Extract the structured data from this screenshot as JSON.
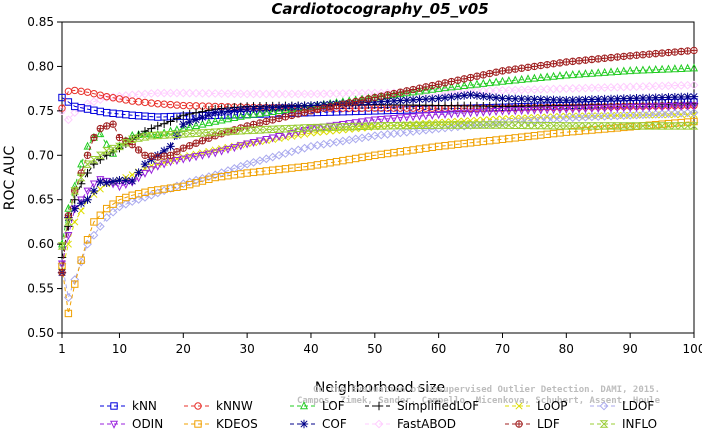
{
  "chart_data": {
    "type": "line",
    "title": "Cardiotocography_05_v05",
    "xlabel": "Neighborhood size",
    "ylabel": "ROC AUC",
    "xlim": [
      1,
      100
    ],
    "ylim": [
      0.5,
      0.85
    ],
    "xticks": [
      1,
      10,
      20,
      30,
      40,
      50,
      60,
      70,
      80,
      90,
      100
    ],
    "yticks": [
      "0.50",
      "0.55",
      "0.60",
      "0.65",
      "0.70",
      "0.75",
      "0.80",
      "0.85"
    ],
    "grid": false,
    "legend_position": "bottom",
    "watermark": [
      "Campos, Zimek, Sander, Campello, Micenkova, Schubert, Assent, Houle",
      "On the Evaluation of Unsupervised Outlier Detection. DAMI, 2015."
    ],
    "series": [
      {
        "name": "kNN",
        "color": "#0000dd",
        "marker": "square",
        "dash": "4,3",
        "points": [
          [
            1,
            0.765
          ],
          [
            2,
            0.76
          ],
          [
            3,
            0.755
          ],
          [
            5,
            0.752
          ],
          [
            8,
            0.748
          ],
          [
            12,
            0.745
          ],
          [
            16,
            0.743
          ],
          [
            20,
            0.744
          ],
          [
            25,
            0.745
          ],
          [
            30,
            0.746
          ],
          [
            40,
            0.748
          ],
          [
            50,
            0.75
          ],
          [
            60,
            0.752
          ],
          [
            70,
            0.754
          ],
          [
            80,
            0.756
          ],
          [
            90,
            0.758
          ],
          [
            100,
            0.76
          ]
        ]
      },
      {
        "name": "kNNW",
        "color": "#e8302a",
        "marker": "circle",
        "dash": "4,3",
        "points": [
          [
            1,
            0.753
          ],
          [
            2,
            0.772
          ],
          [
            3,
            0.773
          ],
          [
            5,
            0.771
          ],
          [
            8,
            0.766
          ],
          [
            12,
            0.761
          ],
          [
            16,
            0.758
          ],
          [
            20,
            0.756
          ],
          [
            25,
            0.755
          ],
          [
            30,
            0.754
          ],
          [
            40,
            0.753
          ],
          [
            50,
            0.753
          ],
          [
            60,
            0.753
          ],
          [
            70,
            0.753
          ],
          [
            80,
            0.754
          ],
          [
            90,
            0.755
          ],
          [
            100,
            0.756
          ]
        ]
      },
      {
        "name": "LOF",
        "color": "#22cc22",
        "marker": "triangle",
        "dash": "4,3",
        "points": [
          [
            1,
            0.6
          ],
          [
            2,
            0.64
          ],
          [
            3,
            0.665
          ],
          [
            4,
            0.69
          ],
          [
            5,
            0.71
          ],
          [
            6,
            0.72
          ],
          [
            7,
            0.724
          ],
          [
            8,
            0.712
          ],
          [
            9,
            0.702
          ],
          [
            10,
            0.71
          ],
          [
            12,
            0.722
          ],
          [
            14,
            0.724
          ],
          [
            16,
            0.723
          ],
          [
            18,
            0.727
          ],
          [
            20,
            0.73
          ],
          [
            25,
            0.738
          ],
          [
            30,
            0.745
          ],
          [
            40,
            0.755
          ],
          [
            50,
            0.765
          ],
          [
            60,
            0.775
          ],
          [
            70,
            0.783
          ],
          [
            80,
            0.79
          ],
          [
            90,
            0.795
          ],
          [
            100,
            0.798
          ]
        ]
      },
      {
        "name": "SimplifiedLOF",
        "color": "#000000",
        "marker": "plus",
        "dash": "4,3",
        "points": [
          [
            1,
            0.585
          ],
          [
            2,
            0.62
          ],
          [
            3,
            0.65
          ],
          [
            4,
            0.668
          ],
          [
            5,
            0.68
          ],
          [
            6,
            0.69
          ],
          [
            7,
            0.695
          ],
          [
            8,
            0.7
          ],
          [
            10,
            0.708
          ],
          [
            12,
            0.718
          ],
          [
            14,
            0.727
          ],
          [
            16,
            0.733
          ],
          [
            18,
            0.738
          ],
          [
            20,
            0.745
          ],
          [
            25,
            0.752
          ],
          [
            30,
            0.755
          ],
          [
            40,
            0.756
          ],
          [
            50,
            0.757
          ],
          [
            60,
            0.756
          ],
          [
            70,
            0.755
          ],
          [
            80,
            0.756
          ],
          [
            90,
            0.757
          ],
          [
            100,
            0.758
          ]
        ]
      },
      {
        "name": "LoOP",
        "color": "#dddd00",
        "marker": "cross",
        "dash": "4,3",
        "points": [
          [
            1,
            0.57
          ],
          [
            2,
            0.6
          ],
          [
            3,
            0.625
          ],
          [
            5,
            0.65
          ],
          [
            8,
            0.668
          ],
          [
            10,
            0.672
          ],
          [
            12,
            0.678
          ],
          [
            15,
            0.688
          ],
          [
            20,
            0.698
          ],
          [
            25,
            0.706
          ],
          [
            30,
            0.713
          ],
          [
            40,
            0.725
          ],
          [
            50,
            0.732
          ],
          [
            60,
            0.737
          ],
          [
            70,
            0.741
          ],
          [
            80,
            0.744
          ],
          [
            90,
            0.745
          ],
          [
            100,
            0.746
          ]
        ]
      },
      {
        "name": "LDOF",
        "color": "#aaaaee",
        "marker": "diamond",
        "dash": "4,3",
        "points": [
          [
            1,
            0.578
          ],
          [
            2,
            0.54
          ],
          [
            3,
            0.56
          ],
          [
            5,
            0.6
          ],
          [
            8,
            0.63
          ],
          [
            10,
            0.642
          ],
          [
            12,
            0.648
          ],
          [
            15,
            0.655
          ],
          [
            20,
            0.668
          ],
          [
            25,
            0.678
          ],
          [
            30,
            0.69
          ],
          [
            40,
            0.71
          ],
          [
            50,
            0.722
          ],
          [
            60,
            0.73
          ],
          [
            70,
            0.737
          ],
          [
            80,
            0.742
          ],
          [
            90,
            0.745
          ],
          [
            100,
            0.748
          ]
        ]
      },
      {
        "name": "ODIN",
        "color": "#9922dd",
        "marker": "triangle-down",
        "dash": "4,3",
        "points": [
          [
            1,
            0.578
          ],
          [
            2,
            0.61
          ],
          [
            3,
            0.64
          ],
          [
            4,
            0.65
          ],
          [
            5,
            0.66
          ],
          [
            6,
            0.668
          ],
          [
            7,
            0.673
          ],
          [
            8,
            0.671
          ],
          [
            10,
            0.665
          ],
          [
            12,
            0.67
          ],
          [
            14,
            0.68
          ],
          [
            16,
            0.688
          ],
          [
            18,
            0.693
          ],
          [
            20,
            0.696
          ],
          [
            25,
            0.703
          ],
          [
            30,
            0.713
          ],
          [
            40,
            0.73
          ],
          [
            50,
            0.74
          ],
          [
            60,
            0.746
          ],
          [
            70,
            0.75
          ],
          [
            80,
            0.752
          ],
          [
            90,
            0.754
          ],
          [
            100,
            0.756
          ]
        ]
      },
      {
        "name": "KDEOS",
        "color": "#f0a000",
        "marker": "square",
        "dash": "4,3",
        "points": [
          [
            1,
            0.575
          ],
          [
            2,
            0.522
          ],
          [
            3,
            0.555
          ],
          [
            4,
            0.582
          ],
          [
            5,
            0.605
          ],
          [
            6,
            0.625
          ],
          [
            8,
            0.64
          ],
          [
            10,
            0.65
          ],
          [
            12,
            0.655
          ],
          [
            15,
            0.66
          ],
          [
            20,
            0.665
          ],
          [
            25,
            0.675
          ],
          [
            30,
            0.68
          ],
          [
            40,
            0.688
          ],
          [
            50,
            0.7
          ],
          [
            60,
            0.71
          ],
          [
            70,
            0.718
          ],
          [
            80,
            0.726
          ],
          [
            90,
            0.732
          ],
          [
            100,
            0.738
          ]
        ]
      },
      {
        "name": "COF",
        "color": "#000088",
        "marker": "star",
        "dash": "4,3",
        "points": [
          [
            1,
            0.568
          ],
          [
            2,
            0.63
          ],
          [
            3,
            0.64
          ],
          [
            4,
            0.646
          ],
          [
            5,
            0.65
          ],
          [
            6,
            0.66
          ],
          [
            7,
            0.67
          ],
          [
            8,
            0.669
          ],
          [
            10,
            0.672
          ],
          [
            12,
            0.671
          ],
          [
            14,
            0.69
          ],
          [
            16,
            0.7
          ],
          [
            18,
            0.71
          ],
          [
            20,
            0.735
          ],
          [
            25,
            0.748
          ],
          [
            30,
            0.752
          ],
          [
            40,
            0.756
          ],
          [
            50,
            0.76
          ],
          [
            60,
            0.764
          ],
          [
            65,
            0.768
          ],
          [
            70,
            0.764
          ],
          [
            80,
            0.762
          ],
          [
            90,
            0.764
          ],
          [
            100,
            0.766
          ]
        ]
      },
      {
        "name": "FastABOD",
        "color": "#ffccff",
        "marker": "diamond",
        "dash": "4,3",
        "points": [
          [
            1,
            0.75
          ],
          [
            2,
            0.74
          ],
          [
            3,
            0.748
          ],
          [
            5,
            0.758
          ],
          [
            8,
            0.765
          ],
          [
            12,
            0.768
          ],
          [
            16,
            0.77
          ],
          [
            20,
            0.77
          ],
          [
            30,
            0.769
          ],
          [
            40,
            0.769
          ],
          [
            50,
            0.77
          ],
          [
            60,
            0.771
          ],
          [
            70,
            0.773
          ],
          [
            80,
            0.775
          ],
          [
            90,
            0.777
          ],
          [
            100,
            0.779
          ]
        ]
      },
      {
        "name": "LDF",
        "color": "#a02020",
        "marker": "circle-plus",
        "dash": "4,3",
        "points": [
          [
            1,
            0.568
          ],
          [
            2,
            0.632
          ],
          [
            3,
            0.66
          ],
          [
            4,
            0.68
          ],
          [
            5,
            0.7
          ],
          [
            6,
            0.72
          ],
          [
            7,
            0.73
          ],
          [
            8,
            0.733
          ],
          [
            9,
            0.735
          ],
          [
            10,
            0.72
          ],
          [
            12,
            0.712
          ],
          [
            14,
            0.7
          ],
          [
            16,
            0.698
          ],
          [
            18,
            0.7
          ],
          [
            20,
            0.708
          ],
          [
            25,
            0.722
          ],
          [
            30,
            0.733
          ],
          [
            40,
            0.75
          ],
          [
            50,
            0.765
          ],
          [
            60,
            0.78
          ],
          [
            70,
            0.795
          ],
          [
            80,
            0.805
          ],
          [
            90,
            0.812
          ],
          [
            100,
            0.818
          ]
        ]
      },
      {
        "name": "INFLO",
        "color": "#99cc33",
        "marker": "hourglass",
        "dash": "4,3",
        "points": [
          [
            1,
            0.598
          ],
          [
            2,
            0.625
          ],
          [
            3,
            0.66
          ],
          [
            5,
            0.69
          ],
          [
            8,
            0.705
          ],
          [
            10,
            0.71
          ],
          [
            12,
            0.718
          ],
          [
            15,
            0.722
          ],
          [
            20,
            0.724
          ],
          [
            25,
            0.726
          ],
          [
            30,
            0.728
          ],
          [
            40,
            0.731
          ],
          [
            50,
            0.733
          ],
          [
            60,
            0.734
          ],
          [
            70,
            0.734
          ],
          [
            80,
            0.733
          ],
          [
            90,
            0.733
          ],
          [
            100,
            0.733
          ]
        ]
      }
    ],
    "legend_rows": [
      [
        "kNN",
        "kNNW",
        "LOF",
        "SimplifiedLOF",
        "LoOP",
        "LDOF"
      ],
      [
        "ODIN",
        "KDEOS",
        "COF",
        "FastABOD",
        "LDF",
        "INFLO"
      ]
    ]
  }
}
